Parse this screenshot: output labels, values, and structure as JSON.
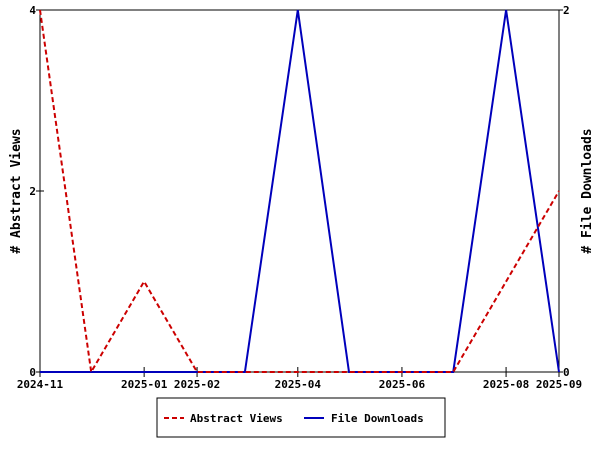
{
  "chart_data": {
    "type": "line",
    "x": [
      "2024-11",
      "2024-12",
      "2025-01",
      "2025-02",
      "2025-03",
      "2025-04",
      "2025-05",
      "2025-06",
      "2025-07",
      "2025-08",
      "2025-09"
    ],
    "series": [
      {
        "name": "Abstract Views",
        "axis": "left",
        "color": "#cc0000",
        "dash": true,
        "values": [
          4,
          0,
          1,
          0,
          0,
          0,
          0,
          0,
          0,
          1,
          2
        ]
      },
      {
        "name": "File Downloads",
        "axis": "right",
        "color": "#0000bb",
        "dash": false,
        "values": [
          0,
          0,
          0,
          0,
          0,
          2,
          0,
          0,
          0,
          2,
          0
        ]
      }
    ],
    "xticks": [
      "2024-11",
      "2025-01",
      "2025-02",
      "2025-04",
      "2025-06",
      "2025-08",
      "2025-09"
    ],
    "ylabel": "# Abstract Views",
    "y2label": "# File Downloads",
    "ylim": [
      0,
      4
    ],
    "y2lim": [
      0,
      2
    ],
    "yticks": [
      "0",
      "2",
      "4"
    ],
    "y2ticks": [
      "0",
      "2"
    ],
    "grid": false,
    "legend": "bottom"
  }
}
